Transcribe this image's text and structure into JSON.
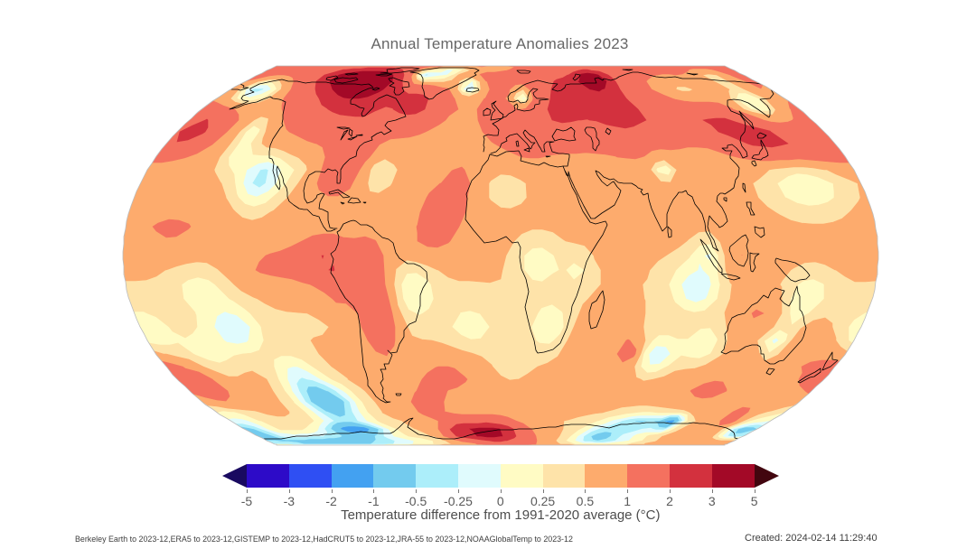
{
  "title": "Annual Temperature Anomalies 2023",
  "colorbar": {
    "ticks": [
      "-5",
      "-3",
      "-2",
      "-1",
      "-0.5",
      "-0.25",
      "0",
      "0.25",
      "0.5",
      "1",
      "2",
      "3",
      "5"
    ],
    "cell_colors": [
      "#2d0bc8",
      "#2f4ff3",
      "#43a1f1",
      "#73cbee",
      "#aceefa",
      "#e0fbfd",
      "#fffbc4",
      "#fee3a9",
      "#fdab6d",
      "#f4715f",
      "#d3313e",
      "#a30927"
    ],
    "under_color": "#190a60",
    "over_color": "#42060f",
    "label": "Temperature difference from 1991-2020 average (°C)"
  },
  "footer": {
    "sources": "Berkeley Earth to 2023-12,ERA5 to 2023-12,GISTEMP to 2023-12,HadCRUT5 to 2023-12,JRA-55 to 2023-12,NOAAGlobalTemp to 2023-12",
    "created": "Created: 2024-02-14 11:29:40"
  },
  "chart_data": {
    "type": "filled-contour world map (Equal Earth projection)",
    "title": "Annual Temperature Anomalies 2023",
    "colorbar_label": "Temperature difference from 1991-2020 average (°C)",
    "levels_degC": [
      -5,
      -3,
      -2,
      -1,
      -0.5,
      -0.25,
      0,
      0.25,
      0.5,
      1,
      2,
      3,
      5
    ],
    "legend_position": "bottom",
    "units": "°C",
    "sources": [
      "Berkeley Earth to 2023-12",
      "ERA5 to 2023-12",
      "GISTEMP to 2023-12",
      "HadCRUT5 to 2023-12",
      "JRA-55 to 2023-12",
      "NOAAGlobalTemp to 2023-12"
    ],
    "created": "2024-02-14 11:29:40"
  }
}
